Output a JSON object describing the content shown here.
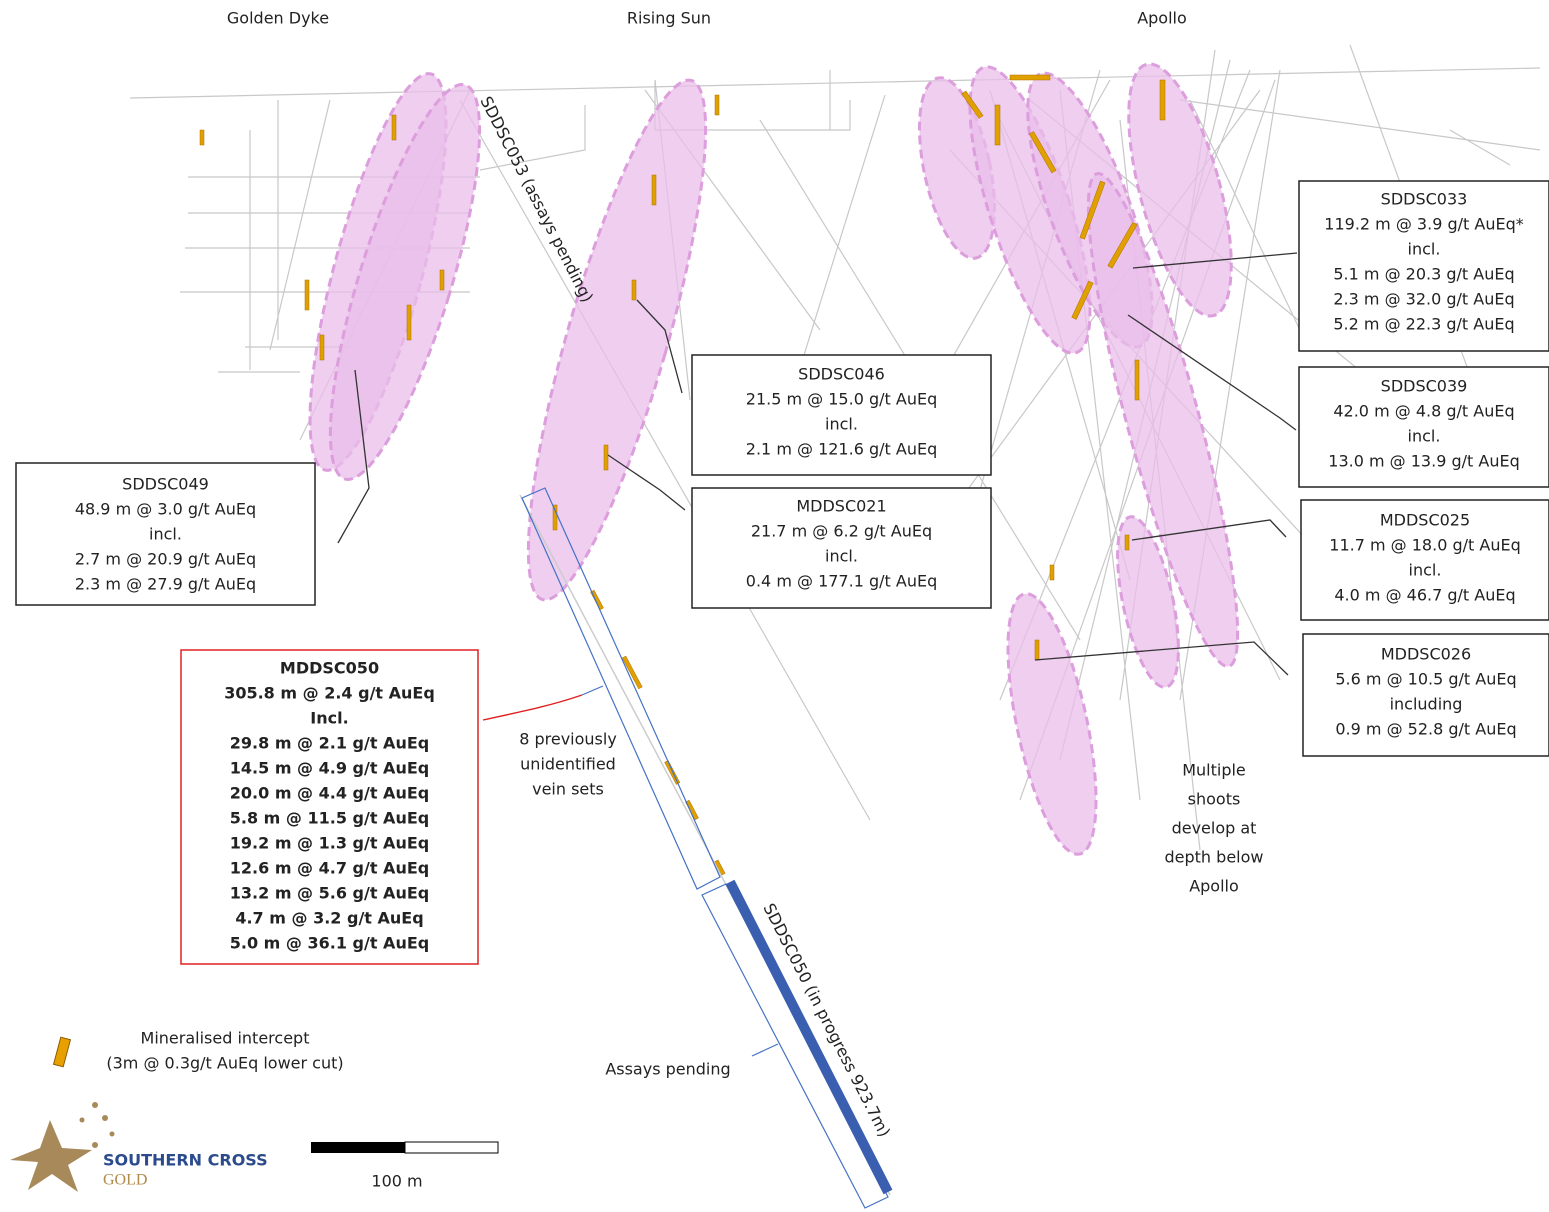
{
  "prospects": [
    "Golden Dyke",
    "Rising Sun",
    "Apollo"
  ],
  "hole_labels": [
    "SDDSC053 (assays pending)",
    "SDDSC050 (in progress 923.7m)"
  ],
  "callouts": [
    {
      "hole": "SDDSC049",
      "lines": [
        "48.9 m @ 3.0 g/t AuEq",
        "incl.",
        "2.7 m @ 20.9 g/t AuEq",
        "2.3 m @ 27.9 g/t AuEq"
      ]
    },
    {
      "hole": "SDDSC046",
      "lines": [
        "21.5 m @ 15.0 g/t AuEq",
        "incl.",
        "2.1 m @ 121.6 g/t AuEq"
      ]
    },
    {
      "hole": "MDDSC021",
      "lines": [
        "21.7 m @ 6.2 g/t AuEq",
        "incl.",
        "0.4 m @ 177.1 g/t AuEq"
      ]
    },
    {
      "hole": "SDDSC033",
      "lines": [
        "119.2 m @ 3.9 g/t AuEq*",
        "incl.",
        "5.1 m @ 20.3 g/t AuEq",
        "2.3 m @ 32.0 g/t AuEq",
        "5.2 m @ 22.3 g/t AuEq"
      ]
    },
    {
      "hole": "SDDSC039",
      "lines": [
        "42.0 m @ 4.8 g/t AuEq",
        "incl.",
        "13.0 m @ 13.9 g/t AuEq"
      ]
    },
    {
      "hole": "MDDSC025",
      "lines": [
        "11.7 m @ 18.0 g/t AuEq",
        "incl.",
        "4.0 m @ 46.7 g/t AuEq"
      ]
    },
    {
      "hole": "MDDSC026",
      "lines": [
        "5.6 m @ 10.5 g/t AuEq",
        "including",
        "0.9 m @ 52.8 g/t AuEq"
      ]
    }
  ],
  "highlight": {
    "hole": "MDDSC050",
    "lines": [
      "305.8 m @ 2.4 g/t AuEq",
      "Incl.",
      "29.8 m @ 2.1 g/t AuEq",
      "14.5 m @ 4.9 g/t AuEq",
      "20.0 m @ 4.4 g/t AuEq",
      "5.8 m @ 11.5 g/t AuEq",
      "19.2 m @ 1.3 g/t AuEq",
      "12.6 m @ 4.7 g/t AuEq",
      "13.2 m @ 5.6 g/t AuEq",
      "4.7 m @ 3.2 g/t AuEq",
      "5.0 m @ 36.1 g/t AuEq"
    ]
  },
  "annotations": {
    "vein_sets": [
      "8 previously",
      "unidentified",
      "vein sets"
    ],
    "assays_pending": "Assays pending",
    "shoots": [
      "Multiple",
      "shoots",
      "develop at",
      "depth below",
      "Apollo"
    ]
  },
  "legend": {
    "label_lines": [
      "Mineralised intercept",
      "(3m @ 0.3g/t AuEq lower cut)"
    ]
  },
  "logo": {
    "line1": "SOUTHERN CROSS",
    "line2": "GOLD"
  },
  "scale_bar": {
    "label": "100 m"
  }
}
